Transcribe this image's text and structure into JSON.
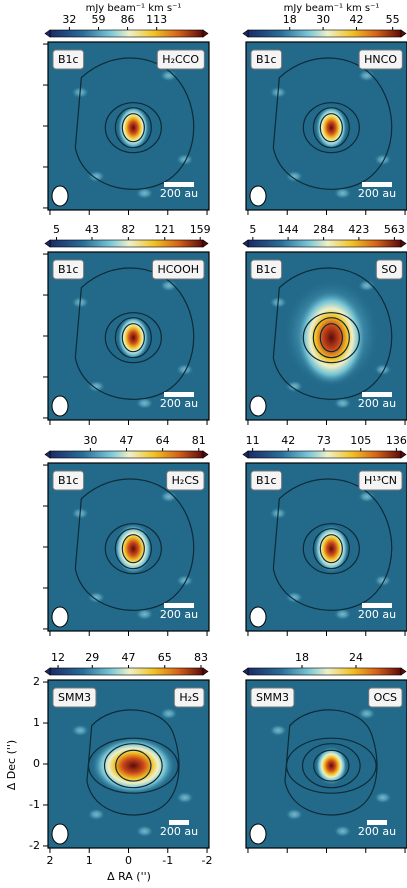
{
  "colorbar_unit": "mJy beam⁻¹ km s⁻¹",
  "scale_bar": "200 au",
  "x_label": "Δ RA ('')",
  "y_label": "Δ Dec ('')",
  "xlim": [
    2.05,
    -2.05
  ],
  "ylim": [
    -2.05,
    2.05
  ],
  "xticks": [
    2,
    1,
    0,
    -1,
    -2
  ],
  "yticks": [
    2,
    1,
    0,
    -1,
    -2
  ],
  "panels": [
    {
      "source": "B1c",
      "molecule": "H₂CCO",
      "cbar_lim": [
        14,
        156
      ],
      "cbar_ticks": [
        32,
        59,
        86,
        113
      ]
    },
    {
      "source": "B1c",
      "molecule": "HNCO",
      "cbar_lim": [
        3,
        58
      ],
      "cbar_ticks": [
        18,
        30,
        42,
        55
      ]
    },
    {
      "source": "B1c",
      "molecule": "HCOOH",
      "cbar_lim": [
        -2,
        162
      ],
      "cbar_ticks": [
        5,
        43,
        82,
        121,
        159
      ]
    },
    {
      "source": "B1c",
      "molecule": "SO",
      "cbar_lim": [
        -14,
        589
      ],
      "cbar_ticks": [
        5,
        144,
        284,
        423,
        563
      ]
    },
    {
      "source": "B1c",
      "molecule": "H₂CS",
      "cbar_lim": [
        11,
        83
      ],
      "cbar_ticks": [
        30,
        47,
        64,
        81
      ]
    },
    {
      "source": "B1c",
      "molecule": "H¹³CN",
      "cbar_lim": [
        7,
        140
      ],
      "cbar_ticks": [
        11,
        42,
        73,
        105,
        136
      ]
    },
    {
      "source": "SMM3",
      "molecule": "H₂S",
      "cbar_lim": [
        8,
        84
      ],
      "cbar_ticks": [
        12,
        29,
        47,
        65,
        83
      ]
    },
    {
      "source": "SMM3",
      "molecule": "OCS",
      "cbar_lim": [
        12,
        29
      ],
      "cbar_ticks": [
        18,
        24
      ]
    }
  ]
}
